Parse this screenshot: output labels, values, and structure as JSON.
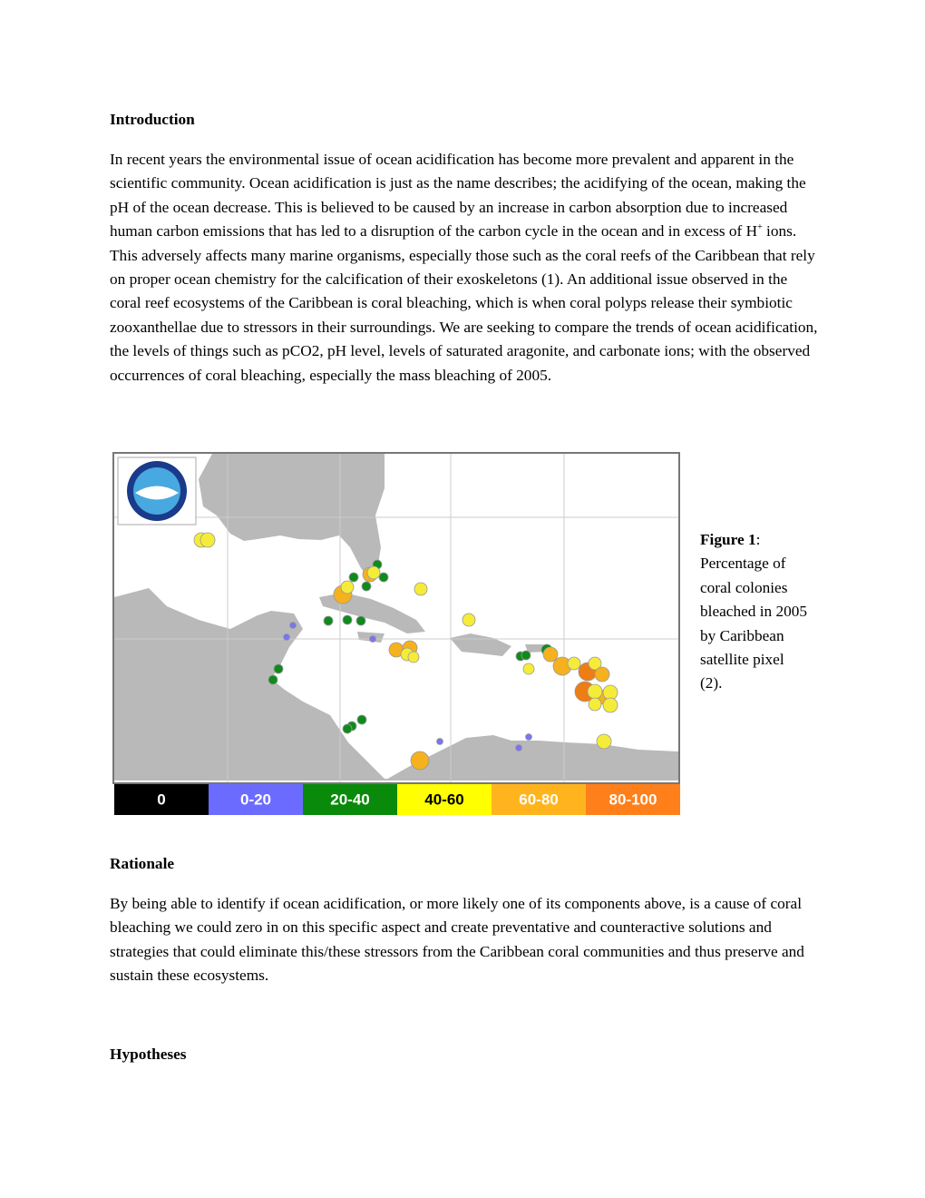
{
  "introduction": {
    "heading": "Introduction",
    "paragraph": {
      "before_superscript": "In recent years the environmental issue of ocean acidification has become more prevalent and apparent in the scientific community. Ocean acidification is just as the name describes; the acidifying of the ocean, making the pH of the ocean decrease. This is believed to be caused by an increase in carbon absorption due to increased human carbon emissions that has led to a disruption of the carbon cycle in the ocean and in excess of H",
      "superscript": "+",
      "after_superscript": " ions. This adversely affects many marine organisms, especially those such as the coral reefs of the Caribbean that rely on proper ocean chemistry for the calcification of their exoskeletons (1).  An additional issue observed in the coral reef ecosystems of the Caribbean is coral bleaching, which is when coral polyps release their symbiotic zooxanthellae due to stressors in their surroundings. We are seeking to compare the trends of ocean acidification, the levels of things such as pCO2, pH level, levels of saturated aragonite, and carbonate ions; with the observed occurrences of coral bleaching, especially the mass bleaching of 2005."
    }
  },
  "figure": {
    "legend": [
      "0",
      "0-20",
      "20-40",
      "40-60",
      "60-80",
      "80-100"
    ],
    "caption": {
      "label": "Figure 1",
      "text": ": Percentage of coral colonies bleached in 2005 by Caribbean satellite pixel (2)."
    }
  },
  "rationale": {
    "heading": "Rationale",
    "paragraph": "By being able to identify if ocean acidification, or more likely one of its components above, is a cause of coral bleaching we could zero in on this specific aspect and create preventative and counteractive solutions and strategies that could eliminate this/these stressors from the Caribbean coral communities and thus preserve and sustain these ecosystems."
  },
  "hypotheses": {
    "heading": "Hypotheses"
  }
}
